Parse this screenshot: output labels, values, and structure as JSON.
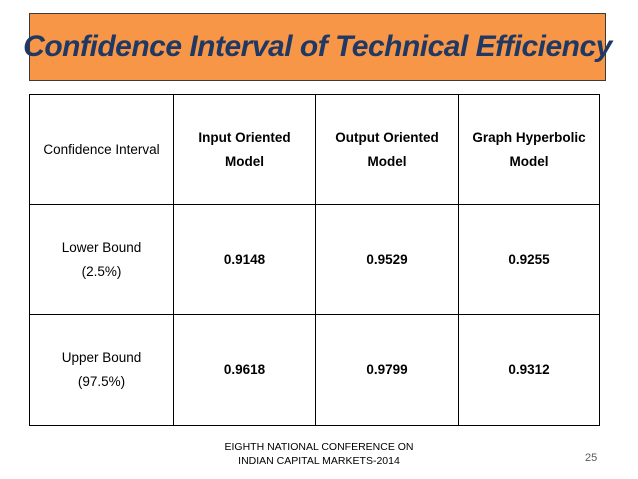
{
  "slide": {
    "title": "Confidence Interval of Technical Efficiency",
    "footer_line1": "EIGHTH NATIONAL CONFERENCE ON",
    "footer_line2": "INDIAN CAPITAL MARKETS-2014",
    "page_number": "25"
  },
  "table": {
    "header": {
      "corner": "Confidence Interval",
      "columns": [
        {
          "line1": "Input Oriented",
          "line2": "Model"
        },
        {
          "line1": "Output Oriented",
          "line2": "Model"
        },
        {
          "line1": "Graph Hyperbolic",
          "line2": "Model"
        }
      ]
    },
    "rows": [
      {
        "label_line1": "Lower Bound",
        "label_line2": "(2.5%)",
        "values": [
          "0.9148",
          "0.9529",
          "0.9255"
        ]
      },
      {
        "label_line1": "Upper Bound",
        "label_line2": "(97.5%)",
        "values": [
          "0.9618",
          "0.9799",
          "0.9312"
        ]
      }
    ]
  },
  "colors": {
    "title_background": "#f79646",
    "title_text": "#1f3864",
    "table_border": "#000000"
  }
}
